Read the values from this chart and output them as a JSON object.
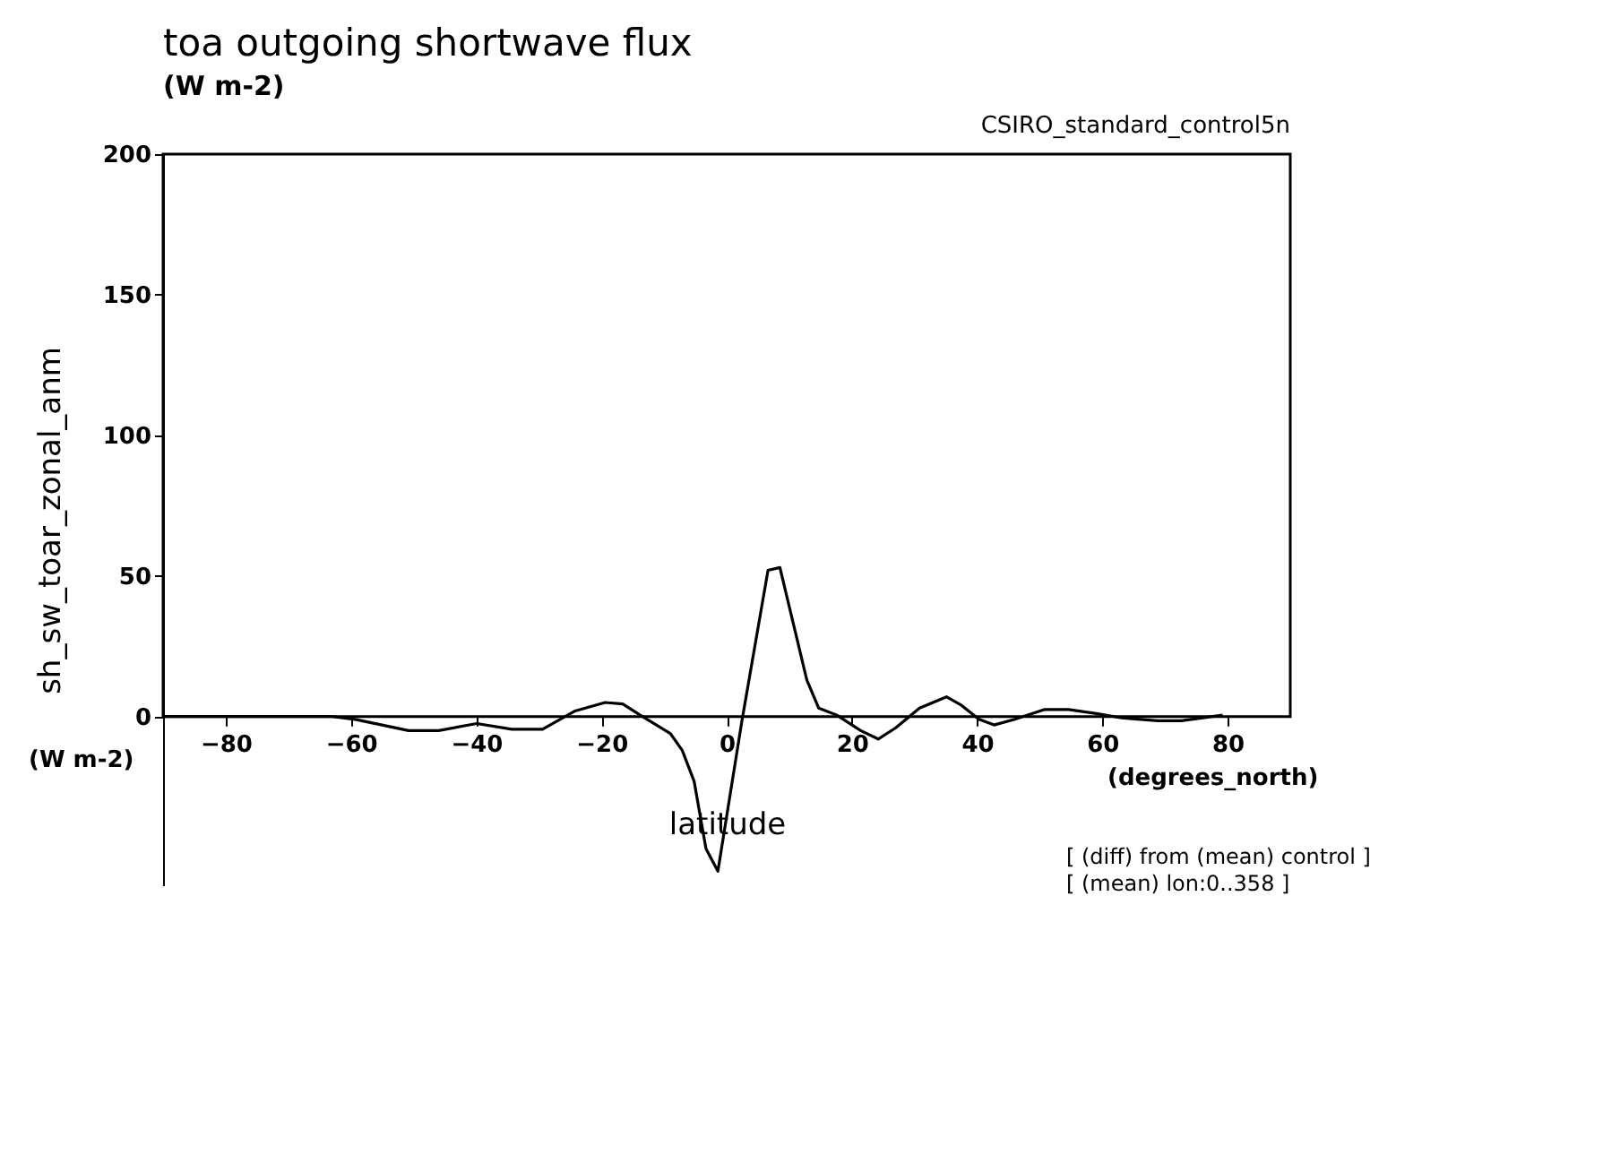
{
  "chart_data": {
    "type": "line",
    "title": "toa outgoing shortwave flux",
    "subtitle": "(W m-2)",
    "xlabel": "latitude",
    "ylabel": "sh_sw_toar_zonal_anm",
    "annotations": [
      "CSIRO_standard_control5n",
      "(W m-2)",
      "(degrees_north)",
      "[ (diff) from (mean) control ]",
      "[ (mean) lon:0..358 ]"
    ],
    "x": [
      -90,
      -63,
      -59.3,
      -50.8,
      -46,
      -39.9,
      -34.3,
      -29.4,
      -24.2,
      -19.4,
      -16.6,
      -13.8,
      -9,
      -7.1,
      -5.2,
      -3.3,
      -1.4,
      2.4,
      6.6,
      8.5,
      12.8,
      14.7,
      17.6,
      21.4,
      24.2,
      27,
      30.8,
      35.1,
      37.5,
      40.3,
      42.7,
      46,
      50.8,
      54.6,
      59.3,
      63.1,
      68.8,
      72.6,
      79.2
    ],
    "series": [
      {
        "color": "#000000",
        "values": [
          0,
          0,
          -1,
          -5,
          -5,
          -2.5,
          -4.5,
          -4.5,
          2,
          5,
          4.5,
          0.5,
          -6,
          -12,
          -23,
          -47,
          -55,
          -2,
          52,
          53,
          13,
          3,
          0.5,
          -5,
          -8,
          -4,
          3,
          7,
          4,
          -1,
          -3,
          -1,
          2.5,
          2.5,
          1,
          -0.5,
          -1.5,
          -1.5,
          0.5
        ]
      }
    ],
    "xlim": [
      -90,
      90
    ],
    "ylim": [
      -60,
      200
    ],
    "xticks": [
      -80,
      -60,
      -40,
      -20,
      0,
      20,
      40,
      60,
      80
    ],
    "yticks": [
      0,
      50,
      100,
      150,
      200
    ],
    "grid": false,
    "marker": "none",
    "line_style": "solid"
  }
}
